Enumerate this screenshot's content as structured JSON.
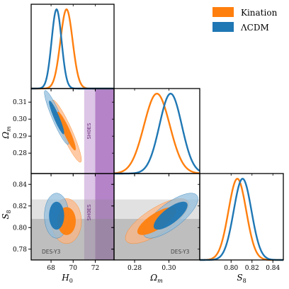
{
  "chart_data": {
    "type": "corner",
    "parameters": [
      {
        "key": "H0",
        "label": "H",
        "sub": "0",
        "range": [
          66.2,
          73.7
        ],
        "ticks": [
          68,
          70,
          72
        ]
      },
      {
        "key": "Om",
        "label": "Ω",
        "sub": "m",
        "range": [
          0.268,
          0.318
        ],
        "ticks": [
          0.28,
          0.3,
          0.31
        ]
      },
      {
        "key": "S8",
        "label": "S",
        "sub": "8",
        "range": [
          0.77,
          0.85
        ],
        "ticks": [
          0.8,
          0.82,
          0.84
        ]
      }
    ],
    "axis_ticks": {
      "H0_bottom": [
        "68",
        "70",
        "72"
      ],
      "Om_left": [
        "0.28",
        "0.29",
        "0.30",
        "0.31"
      ],
      "Om_bottom": [
        "0.28",
        "0.30"
      ],
      "S8_left": [
        "0.78",
        "0.80",
        "0.82",
        "0.84"
      ],
      "S8_bottom": [
        "0.80",
        "0.82",
        "0.84"
      ]
    },
    "series": [
      {
        "name": "Kination",
        "color": "#ff7f0e",
        "mean": {
          "H0": 69.4,
          "Om": 0.293,
          "S8": 0.806
        },
        "sigma": {
          "H0": 0.55,
          "Om": 0.0075,
          "S8": 0.0085
        },
        "corr": {
          "H0_Om": -0.92,
          "H0_S8": 0.0,
          "Om_S8": 0.75
        }
      },
      {
        "name": "ΛCDM",
        "color": "#1f77b4",
        "mean": {
          "H0": 68.5,
          "Om": 0.301,
          "S8": 0.811
        },
        "sigma": {
          "H0": 0.45,
          "Om": 0.0065,
          "S8": 0.0085
        },
        "corr": {
          "H0_Om": -0.92,
          "H0_S8": 0.0,
          "Om_S8": 0.75
        }
      }
    ],
    "bands": [
      {
        "name": "SH0ES",
        "param": "H0",
        "inner": [
          71.0,
          72.0
        ],
        "outer": [
          72.0,
          73.8
        ],
        "color": "#9b59b6"
      },
      {
        "name": "DES-Y3",
        "param": "S8",
        "inner": [
          0.77,
          0.808
        ],
        "outer": [
          0.808,
          0.826
        ],
        "color": "#888888"
      }
    ],
    "legend": {
      "placement": "top-right",
      "entries": [
        "Kination",
        "ΛCDM"
      ]
    }
  }
}
